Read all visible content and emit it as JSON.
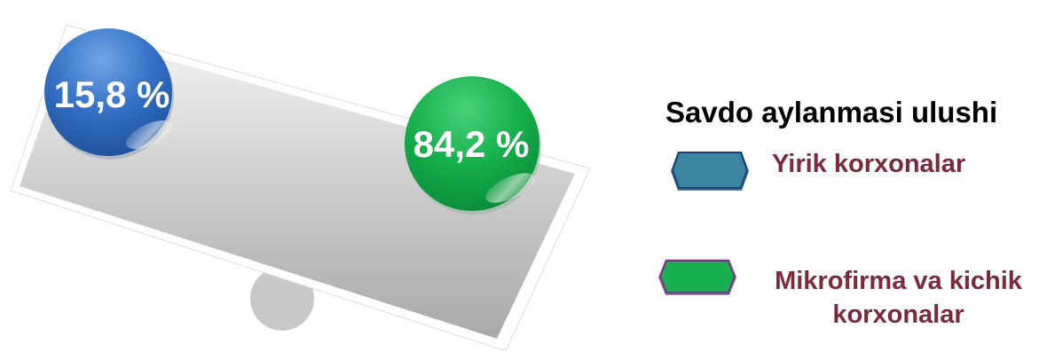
{
  "chart_data": {
    "type": "pie",
    "title": "Savdo aylanmasi ulushi",
    "categories": [
      "Yirik korxonalar",
      "Mikrofirma va kichik korxonalar"
    ],
    "values": [
      15.8,
      84.2
    ],
    "value_labels": [
      "15,8 %",
      "84,2 %"
    ],
    "unit": "%",
    "legend_position": "right",
    "colors": [
      "#3a86a0",
      "#18b050"
    ],
    "ball_colors": [
      "#2a62b8",
      "#12a842"
    ]
  }
}
